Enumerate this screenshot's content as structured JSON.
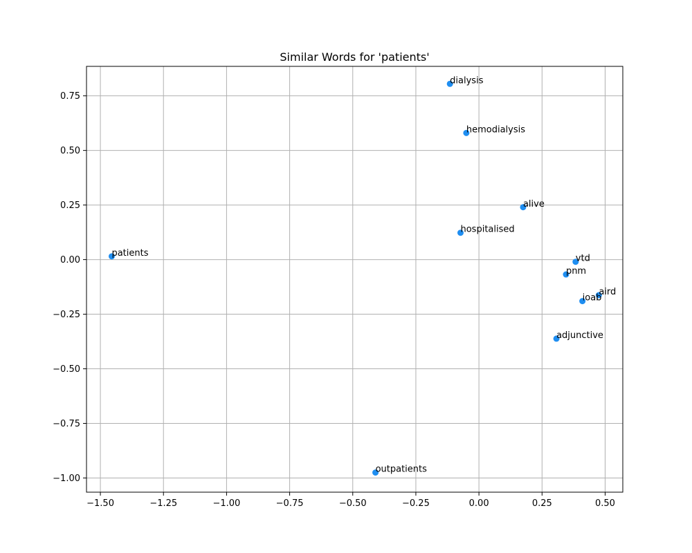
{
  "chart_data": {
    "type": "scatter",
    "title": "Similar Words for 'patients'",
    "xlabel": "",
    "ylabel": "",
    "xlim": [
      -1.555,
      0.57
    ],
    "ylim": [
      -1.065,
      0.885
    ],
    "xticks": [
      -1.5,
      -1.25,
      -1.0,
      -0.75,
      -0.5,
      -0.25,
      0.0,
      0.25,
      0.5
    ],
    "xtick_labels": [
      "−1.50",
      "−1.25",
      "−1.00",
      "−0.75",
      "−0.50",
      "−0.25",
      "0.00",
      "0.25",
      "0.50"
    ],
    "yticks": [
      0.75,
      0.5,
      0.25,
      0.0,
      -0.25,
      -0.5,
      -0.75,
      -1.0
    ],
    "ytick_labels": [
      "0.75",
      "0.50",
      "0.25",
      "0.00",
      "−0.25",
      "−0.50",
      "−0.75",
      "−1.00"
    ],
    "grid": true,
    "marker_color": "#1f8ef1",
    "points": [
      {
        "label": "dialysis",
        "x": -0.115,
        "y": 0.805
      },
      {
        "label": "hemodialysis",
        "x": -0.05,
        "y": 0.58
      },
      {
        "label": "alive",
        "x": 0.175,
        "y": 0.24
      },
      {
        "label": "hospitalised",
        "x": -0.073,
        "y": 0.123
      },
      {
        "label": "patients",
        "x": -1.455,
        "y": 0.015
      },
      {
        "label": "vtd",
        "x": 0.383,
        "y": -0.01
      },
      {
        "label": "pnm",
        "x": 0.345,
        "y": -0.068
      },
      {
        "label": "aird",
        "x": 0.475,
        "y": -0.163
      },
      {
        "label": "ioab",
        "x": 0.41,
        "y": -0.19
      },
      {
        "label": "adjunctive",
        "x": 0.307,
        "y": -0.362
      },
      {
        "label": "outpatients",
        "x": -0.41,
        "y": -0.975
      }
    ]
  }
}
